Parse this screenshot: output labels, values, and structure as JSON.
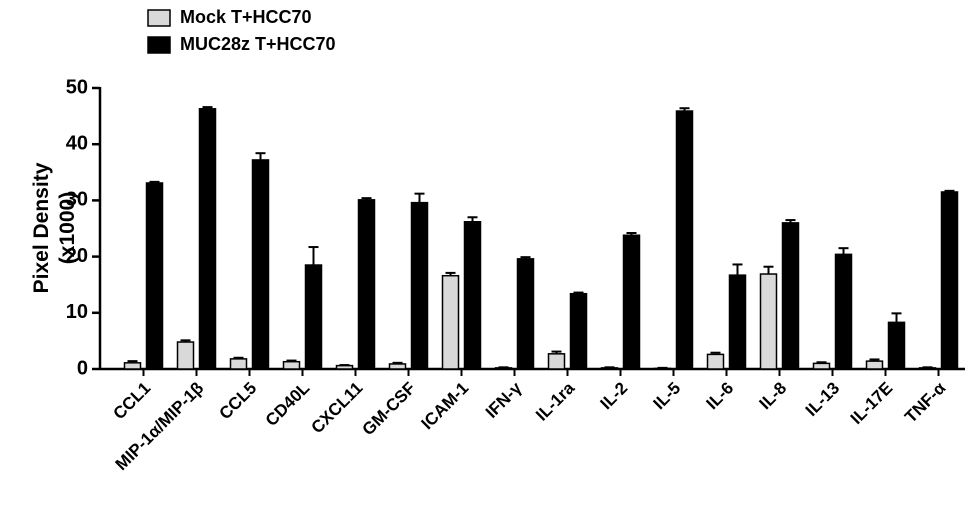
{
  "chart_data": {
    "type": "bar",
    "y_label": [
      "Pixel Density",
      "(x1000)"
    ],
    "categories": [
      "CCL1",
      "MIP-1α/MIP-1β",
      "CCL5",
      "CD40L",
      "CXCL11",
      "GM-CSF",
      "ICAM-1",
      "IFN-γ",
      "IL-1ra",
      "IL-2",
      "IL-5",
      "IL-6",
      "IL-8",
      "IL-13",
      "IL-17E",
      "TNF-α"
    ],
    "series": [
      {
        "name": "Mock T+HCC70",
        "color": "#d9d9d9",
        "values": [
          1.1,
          4.8,
          1.8,
          1.3,
          0.6,
          0.9,
          16.6,
          0.2,
          2.7,
          0.2,
          0.1,
          2.6,
          16.9,
          1.0,
          1.4,
          0.2
        ],
        "errors": [
          0.3,
          0.3,
          0.2,
          0.2,
          0.1,
          0.2,
          0.5,
          0.1,
          0.4,
          0.1,
          0.1,
          0.3,
          1.3,
          0.2,
          0.3,
          0.1
        ]
      },
      {
        "name": "MUC28z T+HCC70",
        "color": "#000000",
        "values": [
          33.1,
          46.3,
          37.2,
          18.5,
          30.1,
          29.6,
          26.2,
          19.6,
          13.4,
          23.8,
          45.9,
          16.7,
          26.0,
          20.4,
          8.3,
          31.5
        ],
        "errors": [
          0.2,
          0.3,
          1.2,
          3.2,
          0.3,
          1.6,
          0.8,
          0.3,
          0.2,
          0.4,
          0.5,
          1.9,
          0.5,
          1.1,
          1.6,
          0.2
        ]
      }
    ],
    "ylim": [
      0,
      50
    ],
    "yticks": [
      0,
      10,
      20,
      30,
      40,
      50
    ],
    "grid": false,
    "legend": "top-left"
  }
}
